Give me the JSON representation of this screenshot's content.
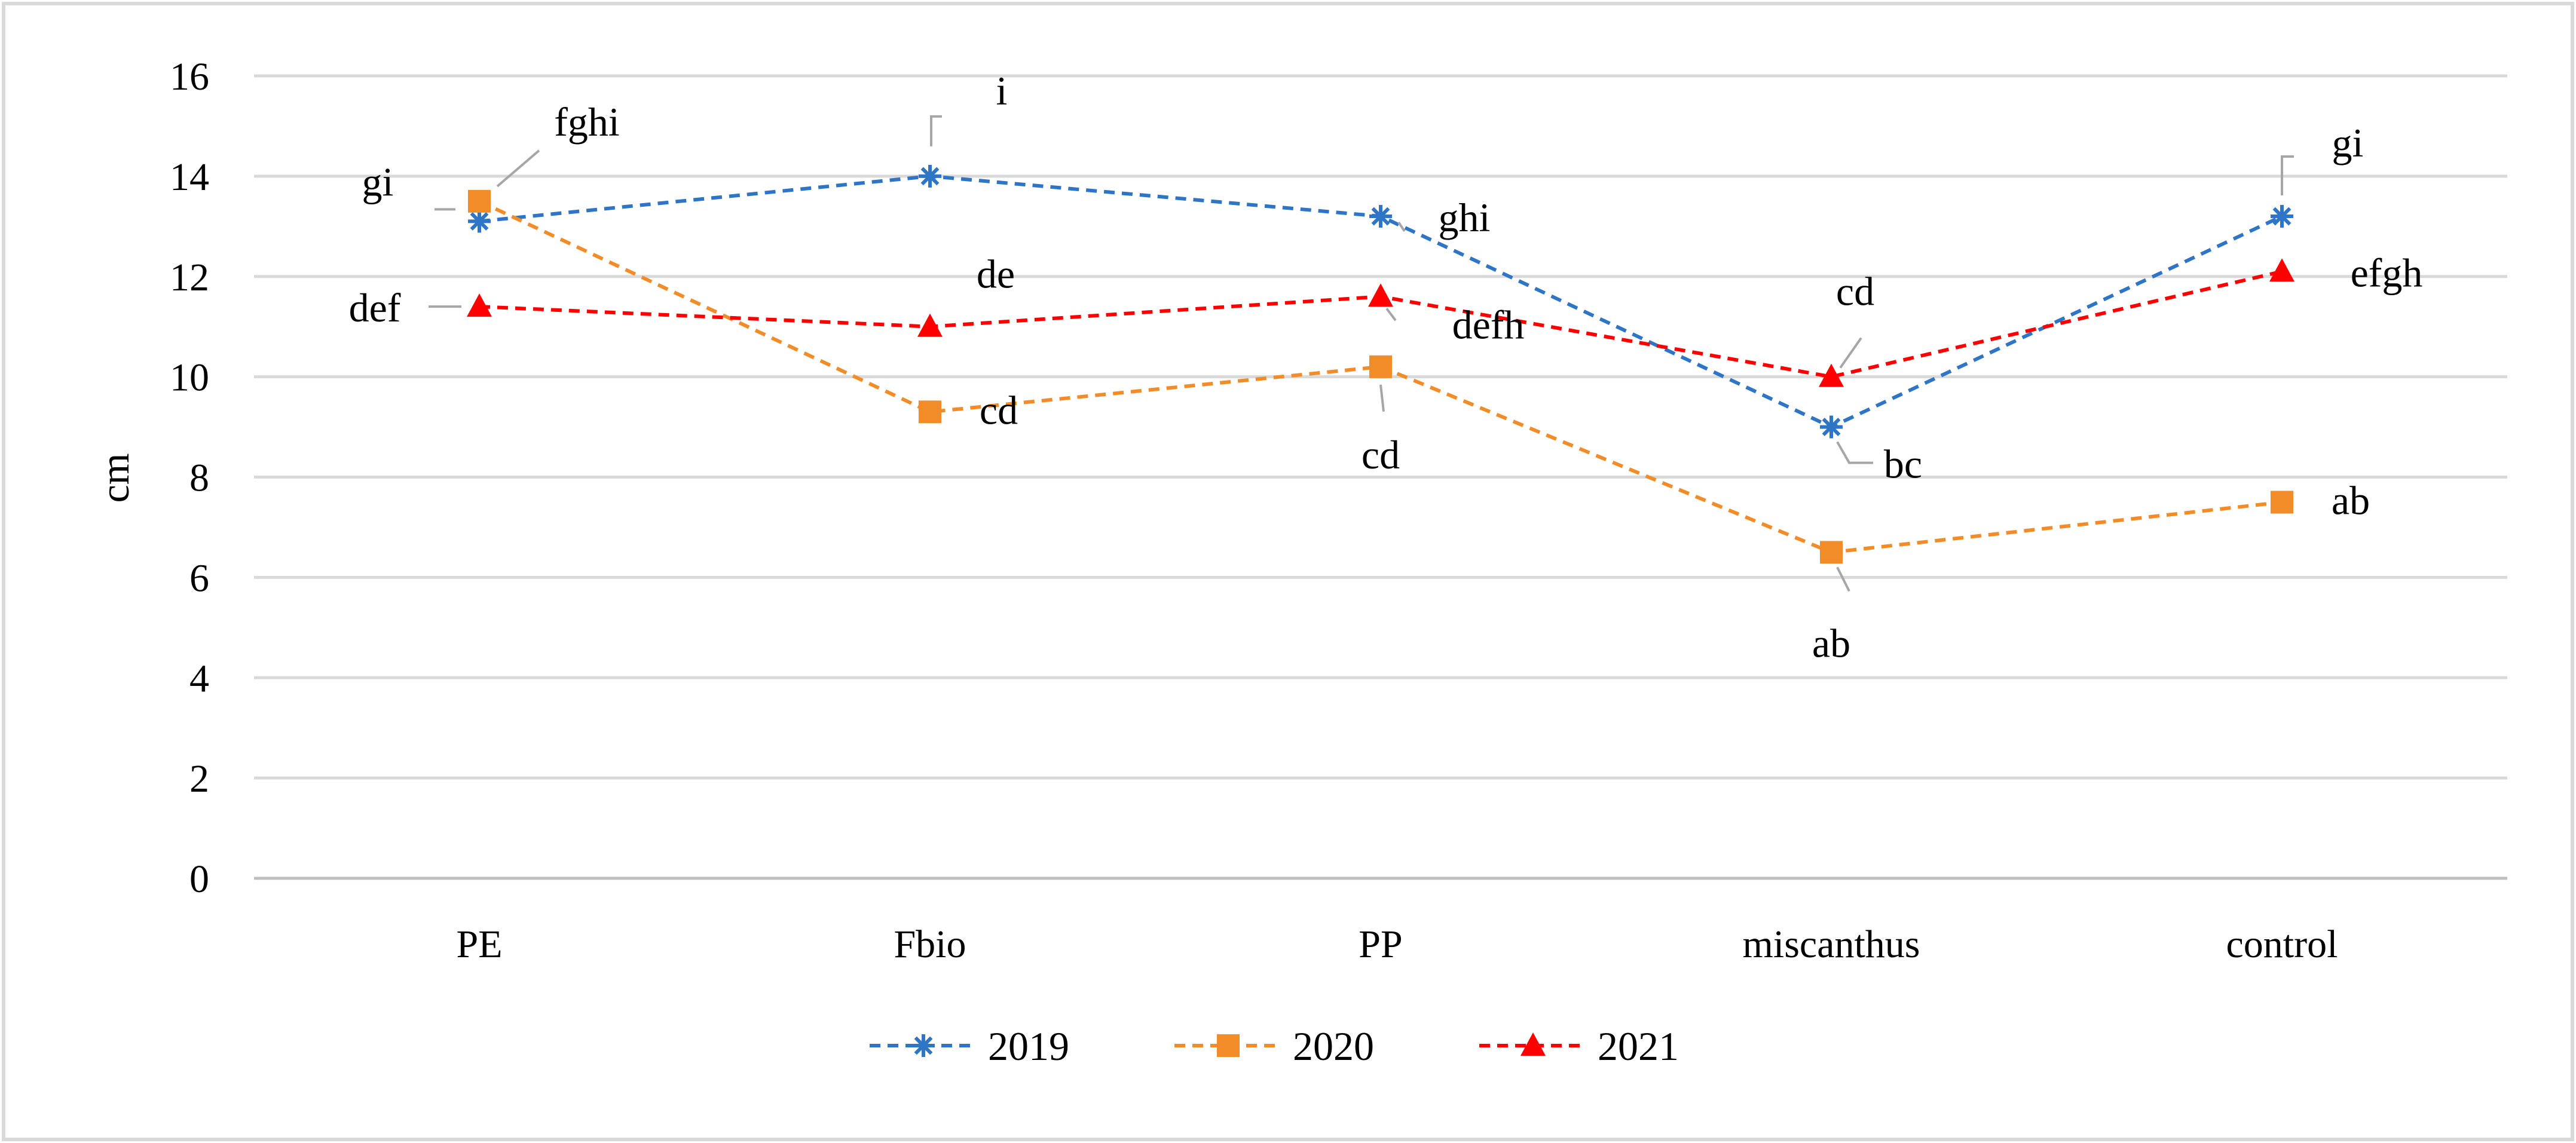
{
  "chart_data": {
    "type": "line",
    "title": "",
    "xlabel": "",
    "ylabel": "cm",
    "ylim": [
      0,
      16
    ],
    "y_ticks": [
      0,
      2,
      4,
      6,
      8,
      10,
      12,
      14,
      16
    ],
    "grid": true,
    "legend_position": "bottom-center",
    "categories": [
      "PE",
      "Fbio",
      "PP",
      "miscanthus",
      "control"
    ],
    "series": [
      {
        "name": "2019",
        "color": "#2E75C6",
        "marker": "asterisk",
        "values": [
          13.1,
          14.0,
          13.2,
          9.0,
          13.2
        ],
        "labels": [
          "gi",
          "i",
          "ghi",
          "bc",
          "gi"
        ]
      },
      {
        "name": "2020",
        "color": "#F28C28",
        "marker": "square",
        "values": [
          13.5,
          9.3,
          10.2,
          6.5,
          7.5
        ],
        "labels": [
          "fghi",
          "cd",
          "cd",
          "ab",
          "ab"
        ]
      },
      {
        "name": "2021",
        "color": "#FF0000",
        "marker": "triangle",
        "values": [
          11.4,
          11.0,
          11.6,
          10.0,
          12.1
        ],
        "labels": [
          "def",
          "de",
          "defh",
          "cd",
          "efgh"
        ]
      }
    ]
  }
}
